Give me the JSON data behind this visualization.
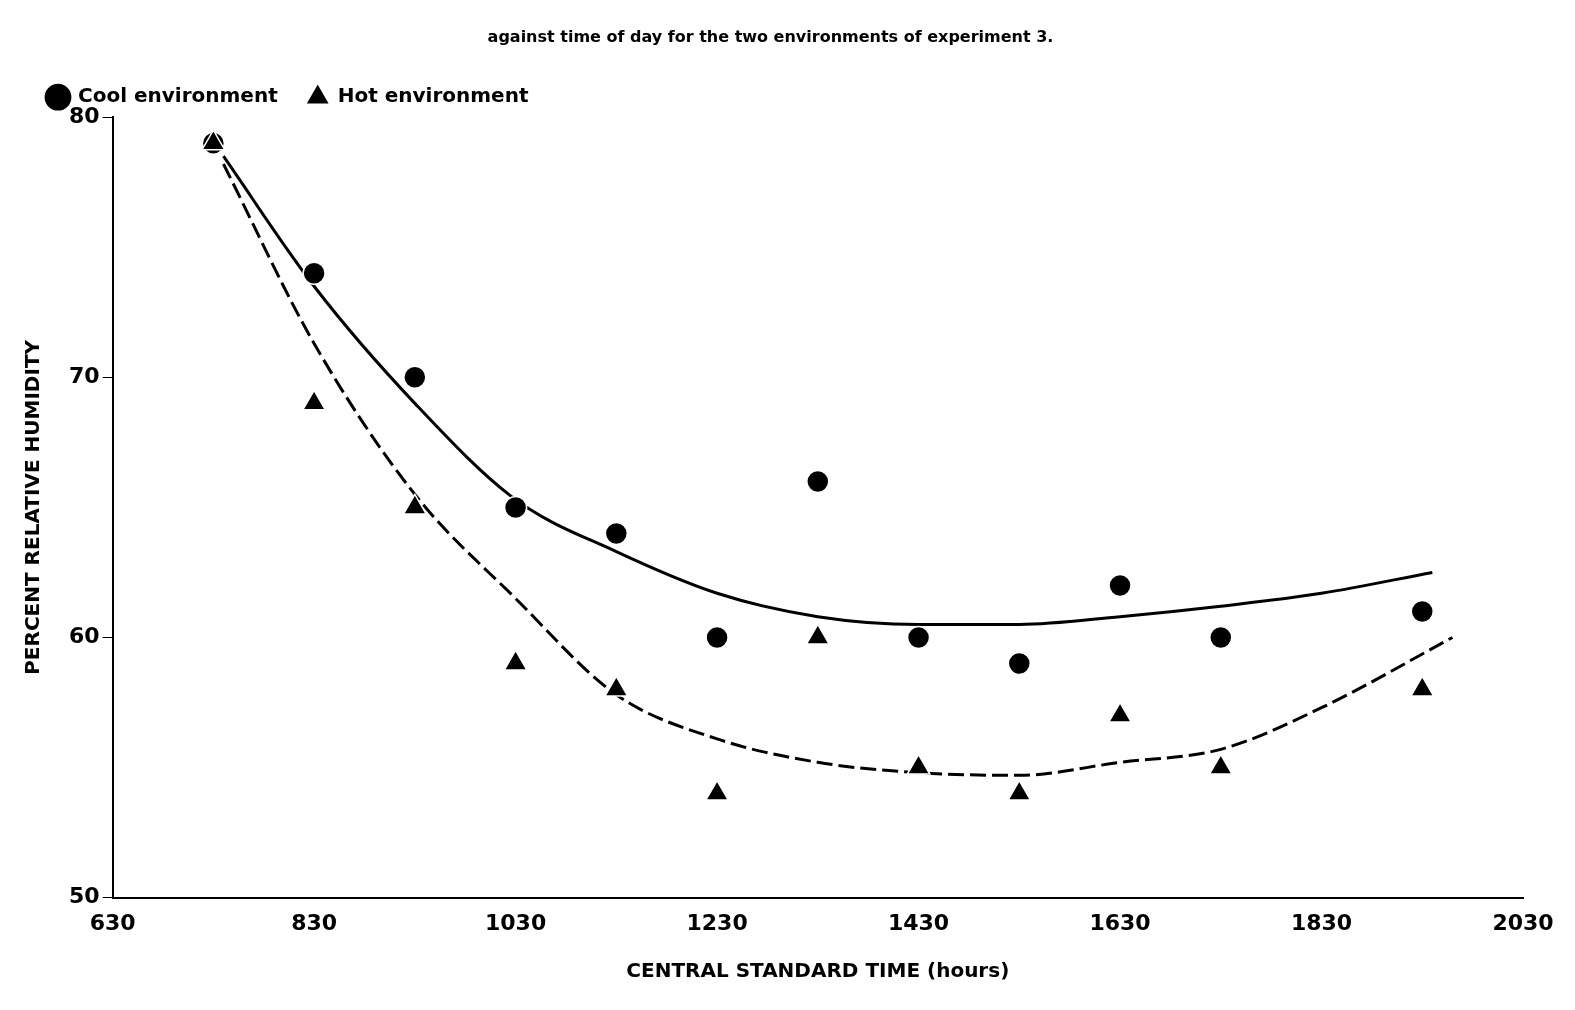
{
  "chart_data": {
    "type": "scatter",
    "title": "against time of day for the two environments of experiment 3.",
    "xlabel": "CENTRAL STANDARD TIME (hours)",
    "ylabel": "PERCENT RELATIVE HUMIDITY",
    "xlim": [
      630,
      2030
    ],
    "xticks": [
      630,
      830,
      1030,
      1230,
      1430,
      1630,
      1830,
      2030
    ],
    "ylim": [
      50,
      80
    ],
    "yticks": [
      50,
      60,
      70,
      80
    ],
    "grid": false,
    "legend": "top left",
    "series": [
      {
        "name": "Cool environment",
        "marker": "circle",
        "color": "#000000",
        "x": [
          730,
          830,
          930,
          1030,
          1130,
          1230,
          1330,
          1430,
          1530,
          1630,
          1730,
          1930
        ],
        "values": [
          79,
          74,
          70,
          65,
          64,
          60,
          66,
          60,
          59,
          62,
          60,
          61
        ]
      },
      {
        "name": "Hot environment",
        "marker": "triangle",
        "color": "#000000",
        "x": [
          730,
          830,
          930,
          1030,
          1130,
          1230,
          1330,
          1430,
          1530,
          1630,
          1730,
          1930
        ],
        "values": [
          79,
          69,
          65,
          59,
          58,
          54,
          60,
          55,
          54,
          57,
          55,
          58
        ]
      },
      {
        "type": "line",
        "line_style": "solid",
        "marker": "none",
        "color": "#000000",
        "x": [
          740,
          830,
          930,
          1030,
          1130,
          1230,
          1330,
          1430,
          1530,
          1630,
          1730,
          1830,
          1940
        ],
        "values": [
          78.5,
          73.5,
          69,
          65.3,
          63.3,
          61.7,
          60.8,
          60.5,
          60.5,
          60.8,
          61.2,
          61.7,
          62.5
        ]
      },
      {
        "type": "line",
        "line_style": "dashed",
        "marker": "none",
        "color": "#000000",
        "x": [
          740,
          830,
          930,
          1030,
          1130,
          1230,
          1330,
          1430,
          1530,
          1630,
          1730,
          1830,
          1960
        ],
        "values": [
          78.2,
          71.3,
          65.5,
          61.5,
          57.8,
          56.1,
          55.2,
          54.8,
          54.7,
          55.2,
          55.7,
          57.3,
          60
        ]
      }
    ]
  }
}
